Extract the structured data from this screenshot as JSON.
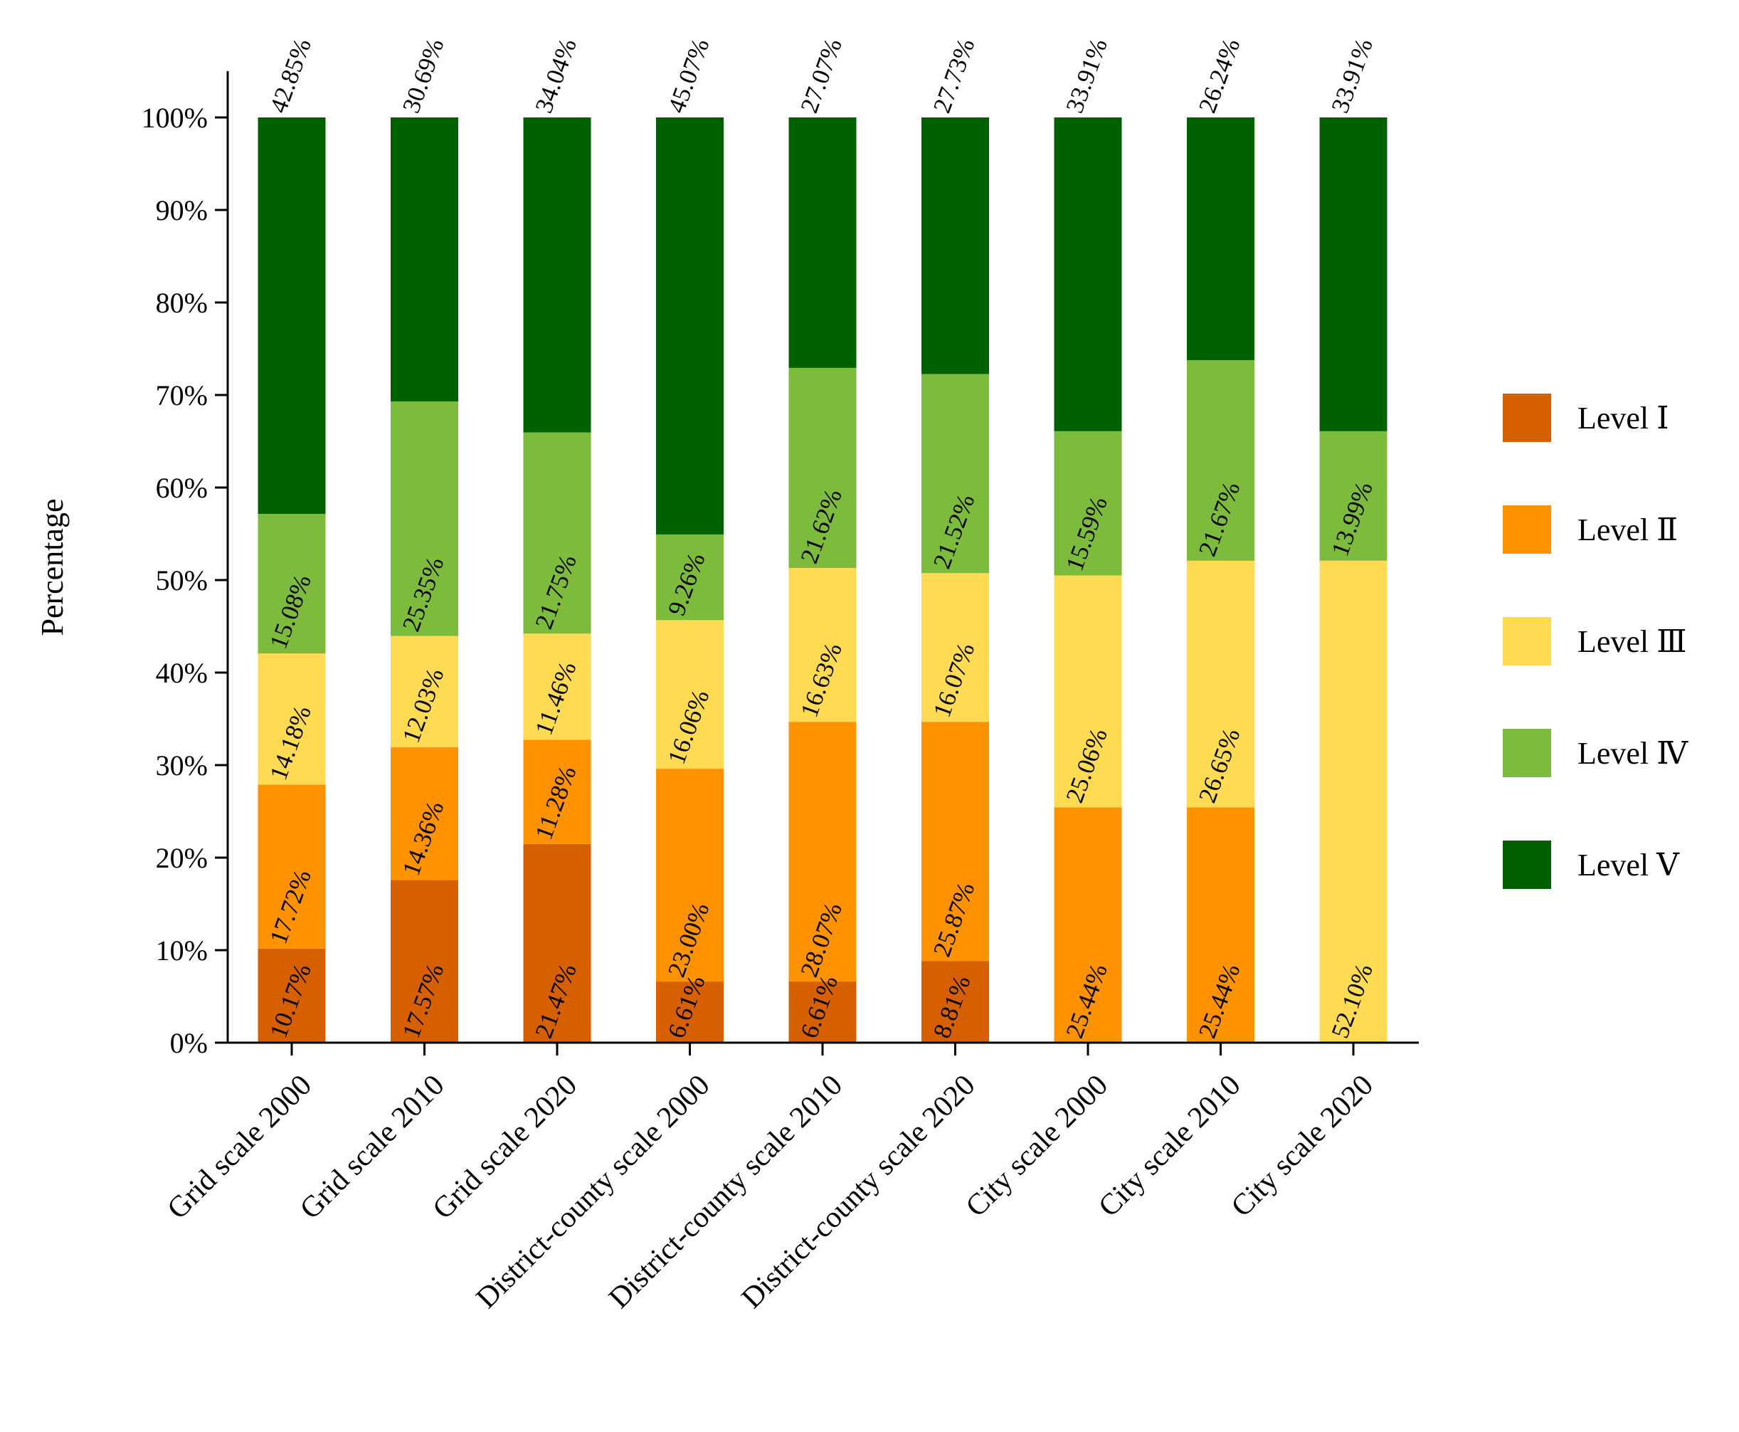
{
  "chart_data": {
    "type": "bar",
    "stacked": true,
    "title": "",
    "xlabel": "",
    "ylabel": "Percentage",
    "ylim": [
      0,
      100
    ],
    "yticks": [
      "0%",
      "10%",
      "20%",
      "30%",
      "40%",
      "50%",
      "60%",
      "70%",
      "80%",
      "90%",
      "100%"
    ],
    "legend_position": "right",
    "grid": false,
    "categories": [
      "Grid scale 2000",
      "Grid scale 2010",
      "Grid scale 2020",
      "District-county scale 2000",
      "District-county scale 2010",
      "District-county scale 2020",
      "City scale 2000",
      "City scale 2010",
      "City scale 2020"
    ],
    "series": [
      {
        "name": "Level Ⅰ",
        "color": "#d65f00",
        "values": [
          10.17,
          17.57,
          21.47,
          6.61,
          6.61,
          8.81,
          0,
          0,
          0
        ]
      },
      {
        "name": "Level Ⅱ",
        "color": "#fe9200",
        "values": [
          17.72,
          14.36,
          11.28,
          23.0,
          28.07,
          25.87,
          25.44,
          25.44,
          0
        ]
      },
      {
        "name": "Level Ⅲ",
        "color": "#fedb53",
        "values": [
          14.18,
          12.03,
          11.46,
          16.06,
          16.63,
          16.07,
          25.06,
          26.65,
          52.1
        ]
      },
      {
        "name": "Level Ⅳ",
        "color": "#7cbb3b",
        "values": [
          15.08,
          25.35,
          21.75,
          9.26,
          21.62,
          21.52,
          15.59,
          21.67,
          13.99
        ]
      },
      {
        "name": "Level Ⅴ",
        "color": "#006100",
        "values": [
          42.85,
          30.69,
          34.04,
          45.07,
          27.07,
          27.73,
          33.91,
          26.24,
          33.91
        ]
      }
    ]
  }
}
